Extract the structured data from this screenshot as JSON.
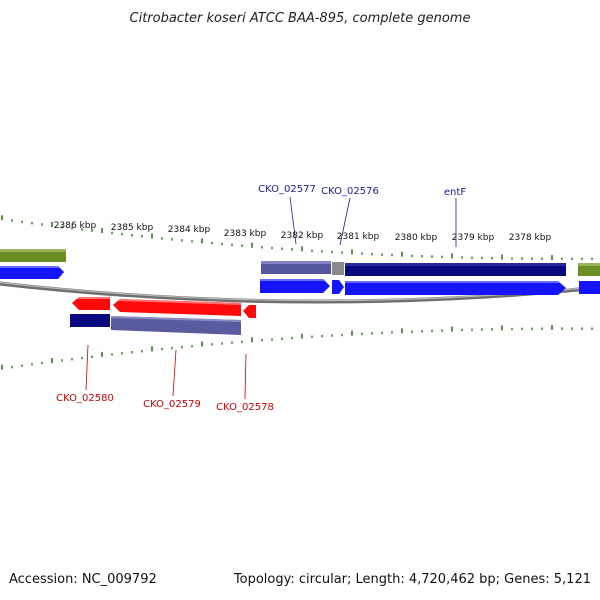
{
  "title": "Citrobacter koseri ATCC BAA-895, complete genome",
  "accession_label": "Accession: NC_009792",
  "summary_label": "Topology: circular; Length: 4,720,462 bp; Genes: 5,121",
  "colors": {
    "backbone": "#8a8a8a",
    "tick": "#2e7d1e",
    "forward_gene": "#1414ff",
    "reverse_gene": "#ff0a0a",
    "forward_cds": "#0a0a80",
    "forward_cds_light": "#4b4b9e",
    "reverse_cds": "#5a5a9e",
    "rna_bar": "#6b8e23",
    "forward_label": "#1a1aa0",
    "reverse_label": "#cc0000"
  },
  "ruler": {
    "labels": [
      "2386 kbp",
      "2385 kbp",
      "2384 kbp",
      "2383 kbp",
      "2382 kbp",
      "2381 kbp",
      "2380 kbp",
      "2379 kbp",
      "2378 kbp"
    ]
  },
  "gene_labels": {
    "forward": [
      "CKO_02577",
      "CKO_02576",
      "entF"
    ],
    "reverse": [
      "CKO_02580",
      "CKO_02579",
      "CKO_02578"
    ]
  }
}
